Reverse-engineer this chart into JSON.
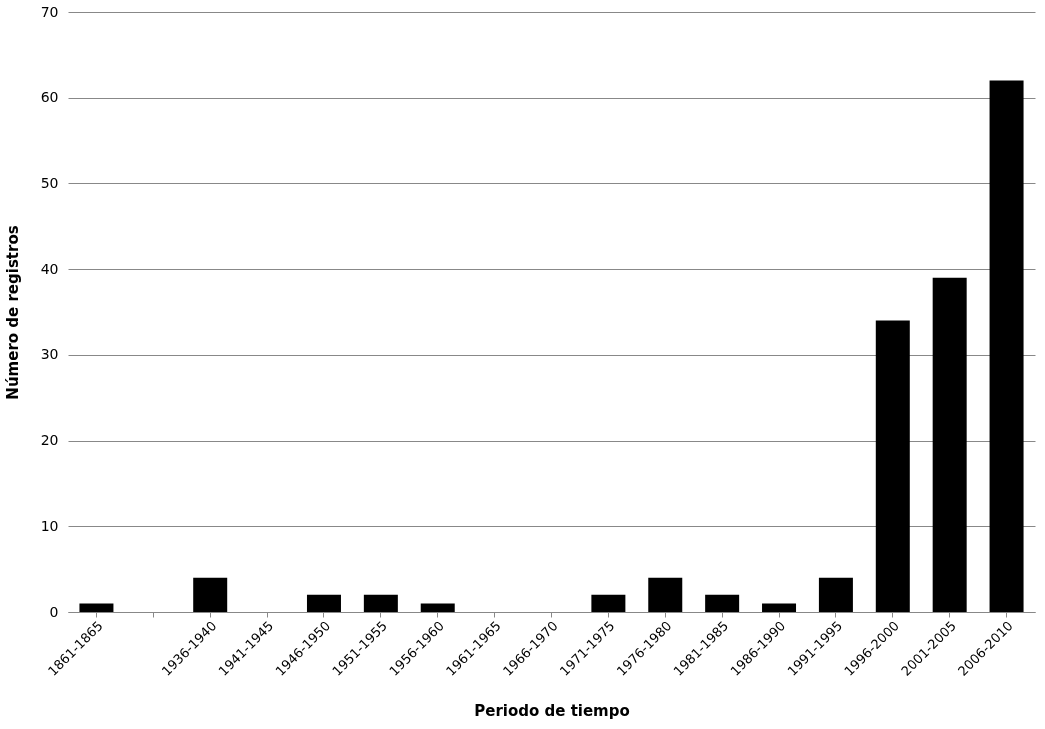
{
  "chart_data": {
    "type": "bar",
    "xlabel": "Periodo de tiempo",
    "ylabel": "Número de registros",
    "categories": [
      "1861-1865",
      null,
      "1936-1940",
      "1941-1945",
      "1946-1950",
      "1951-1955",
      "1956-1960",
      "1961-1965",
      "1966-1970",
      "1971-1975",
      "1976-1980",
      "1981-1985",
      "1986-1990",
      "1991-1995",
      "1996-2000",
      "2001-2005",
      "2006-2010"
    ],
    "values": [
      1,
      null,
      4,
      0,
      2,
      2,
      1,
      0,
      0,
      2,
      4,
      2,
      1,
      4,
      34,
      39,
      62
    ],
    "color": "#000000",
    "ylim": [
      0,
      70
    ],
    "yticks": [
      0,
      10,
      20,
      30,
      40,
      50,
      60,
      70
    ],
    "grid": "y"
  }
}
